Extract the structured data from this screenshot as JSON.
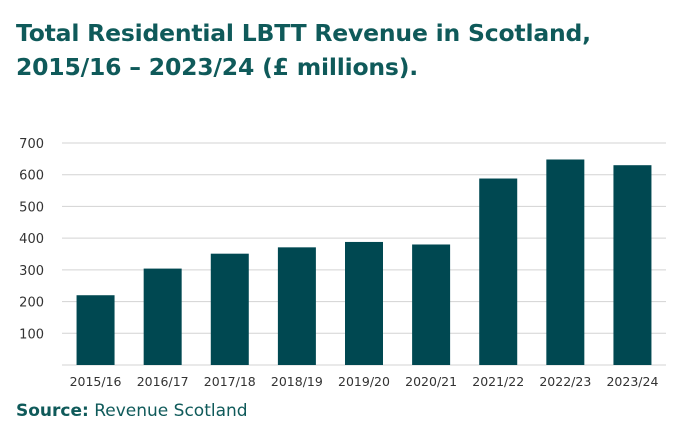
{
  "title_lines": [
    "Total Residential LBTT Revenue in Scotland,",
    "2015/16 – 2023/24 (£ millions)."
  ],
  "source": {
    "label": "Source:",
    "text": "Revenue Scotland"
  },
  "colors": {
    "bar": "#004851",
    "title": "#0f5a5a",
    "grid": "#d3d3d3",
    "axis_text": "#333333"
  },
  "chart_data": {
    "type": "bar",
    "title": "Total Residential LBTT Revenue in Scotland, 2015/16 – 2023/24 (£ millions).",
    "xlabel": "",
    "ylabel": "",
    "categories": [
      "2015/16",
      "2016/17",
      "2017/18",
      "2018/19",
      "2019/20",
      "2020/21",
      "2021/22",
      "2022/23",
      "2023/24"
    ],
    "values": [
      220,
      304,
      351,
      371,
      388,
      380,
      588,
      648,
      630
    ],
    "ylim": [
      0,
      700
    ],
    "yticks": [
      100,
      200,
      300,
      400,
      500,
      600,
      700
    ],
    "grid": true,
    "legend": "none"
  }
}
